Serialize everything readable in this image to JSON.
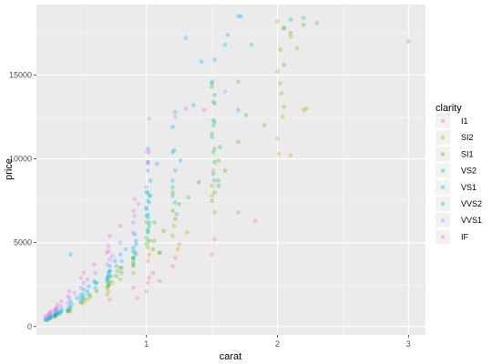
{
  "chart_data": {
    "type": "scatter",
    "title": "",
    "xlabel": "carat",
    "ylabel": "price",
    "xlim": [
      0.16,
      3.13
    ],
    "ylim": [
      -500,
      19200
    ],
    "x_ticks": [
      1,
      2,
      3
    ],
    "y_ticks": [
      0,
      5000,
      10000,
      15000
    ],
    "y_tick_labels": [
      "0",
      "5000",
      "10000",
      "15000"
    ],
    "grid": true,
    "point_alpha": 0.3,
    "legend": {
      "title": "clarity",
      "position": "right",
      "categories": [
        "I1",
        "SI2",
        "SI1",
        "VS2",
        "VS1",
        "VVS2",
        "VVS1",
        "IF"
      ],
      "colors": [
        "#F8766D",
        "#C49A00",
        "#53B400",
        "#00C094",
        "#00B6EB",
        "#06A4FF",
        "#A58AFF",
        "#FB61D7"
      ]
    },
    "series": [
      {
        "name": "I1",
        "points": [
          [
            0.93,
            1700
          ],
          [
            1.0,
            2100
          ],
          [
            1.01,
            2600
          ],
          [
            1.02,
            2900
          ],
          [
            1.05,
            3200
          ],
          [
            1.2,
            3600
          ],
          [
            1.5,
            4300
          ],
          [
            1.52,
            5200
          ],
          [
            1.83,
            6300
          ],
          [
            1.01,
            3900
          ],
          [
            0.9,
            2300
          ],
          [
            1.22,
            4100
          ],
          [
            0.72,
            1600
          ],
          [
            1.1,
            2700
          ]
        ]
      },
      {
        "name": "SI2",
        "points": [
          [
            3.0,
            17000
          ],
          [
            2.0,
            18200
          ],
          [
            2.05,
            17800
          ],
          [
            2.1,
            17300
          ],
          [
            2.15,
            16600
          ],
          [
            2.0,
            15200
          ],
          [
            2.02,
            14500
          ],
          [
            2.03,
            13900
          ],
          [
            2.05,
            13100
          ],
          [
            2.2,
            12900
          ],
          [
            2.22,
            13000
          ],
          [
            2.0,
            11200
          ],
          [
            2.01,
            10300
          ],
          [
            2.1,
            10200
          ],
          [
            1.5,
            8400
          ],
          [
            1.5,
            7800
          ],
          [
            1.52,
            6800
          ],
          [
            1.7,
            6800
          ],
          [
            1.2,
            5400
          ],
          [
            1.21,
            6000
          ],
          [
            1.25,
            4900
          ],
          [
            1.02,
            4300
          ],
          [
            1.01,
            4700
          ],
          [
            0.9,
            3600
          ],
          [
            0.9,
            3200
          ],
          [
            0.8,
            2800
          ],
          [
            0.71,
            2400
          ],
          [
            0.71,
            2100
          ],
          [
            0.7,
            1900
          ],
          [
            0.55,
            1600
          ],
          [
            0.52,
            1400
          ],
          [
            0.42,
            900
          ],
          [
            0.31,
            700
          ],
          [
            0.3,
            600
          ],
          [
            1.03,
            5100
          ],
          [
            1.1,
            4400
          ],
          [
            1.31,
            5600
          ],
          [
            1.51,
            9300
          ],
          [
            2.04,
            12500
          ],
          [
            1.24,
            4600
          ],
          [
            0.74,
            2600
          ]
        ]
      },
      {
        "name": "SI1",
        "points": [
          [
            2.3,
            18100
          ],
          [
            2.2,
            18000
          ],
          [
            2.1,
            17500
          ],
          [
            2.02,
            16500
          ],
          [
            2.05,
            15600
          ],
          [
            1.7,
            14600
          ],
          [
            1.5,
            14300
          ],
          [
            1.51,
            13400
          ],
          [
            1.52,
            12200
          ],
          [
            1.5,
            11500
          ],
          [
            1.52,
            10600
          ],
          [
            1.55,
            9900
          ],
          [
            1.6,
            9300
          ],
          [
            1.55,
            8700
          ],
          [
            1.52,
            8000
          ],
          [
            1.5,
            7500
          ],
          [
            1.2,
            8000
          ],
          [
            1.25,
            7300
          ],
          [
            1.2,
            6900
          ],
          [
            1.22,
            6400
          ],
          [
            1.02,
            6200
          ],
          [
            1.01,
            5800
          ],
          [
            1.0,
            5300
          ],
          [
            1.0,
            4900
          ],
          [
            1.05,
            4600
          ],
          [
            1.1,
            4400
          ],
          [
            0.91,
            4400
          ],
          [
            0.9,
            4100
          ],
          [
            0.9,
            3800
          ],
          [
            0.81,
            3500
          ],
          [
            0.81,
            3200
          ],
          [
            0.73,
            3000
          ],
          [
            0.72,
            2700
          ],
          [
            0.71,
            2500
          ],
          [
            0.7,
            2300
          ],
          [
            0.62,
            2100
          ],
          [
            0.57,
            1800
          ],
          [
            0.52,
            1600
          ],
          [
            0.5,
            1400
          ],
          [
            0.41,
            1000
          ],
          [
            0.4,
            900
          ],
          [
            0.34,
            800
          ],
          [
            0.31,
            700
          ],
          [
            0.3,
            600
          ],
          [
            0.27,
            500
          ],
          [
            0.25,
            400
          ],
          [
            1.32,
            7700
          ],
          [
            1.4,
            8600
          ],
          [
            1.7,
            11000
          ],
          [
            1.76,
            12600
          ],
          [
            1.9,
            12000
          ],
          [
            1.06,
            5100
          ],
          [
            1.13,
            5700
          ],
          [
            0.78,
            3300
          ]
        ]
      },
      {
        "name": "VS2",
        "points": [
          [
            2.2,
            18400
          ],
          [
            2.1,
            18300
          ],
          [
            2.05,
            17800
          ],
          [
            1.8,
            16800
          ],
          [
            1.5,
            14500
          ],
          [
            1.52,
            13800
          ],
          [
            1.51,
            12300
          ],
          [
            1.5,
            11300
          ],
          [
            1.51,
            10400
          ],
          [
            1.52,
            9800
          ],
          [
            1.51,
            9100
          ],
          [
            1.52,
            8700
          ],
          [
            1.55,
            8400
          ],
          [
            1.21,
            10500
          ],
          [
            1.2,
            8300
          ],
          [
            1.2,
            7800
          ],
          [
            1.22,
            7400
          ],
          [
            1.01,
            8000
          ],
          [
            1.01,
            7500
          ],
          [
            1.0,
            7000
          ],
          [
            1.0,
            6600
          ],
          [
            1.02,
            6000
          ],
          [
            1.01,
            5600
          ],
          [
            1.01,
            5100
          ],
          [
            0.92,
            4300
          ],
          [
            0.9,
            4000
          ],
          [
            0.9,
            3700
          ],
          [
            0.8,
            3500
          ],
          [
            0.72,
            3300
          ],
          [
            0.71,
            3000
          ],
          [
            0.7,
            2700
          ],
          [
            0.71,
            2500
          ],
          [
            0.61,
            2300
          ],
          [
            0.56,
            1900
          ],
          [
            0.52,
            1700
          ],
          [
            0.5,
            1500
          ],
          [
            0.42,
            1100
          ],
          [
            0.4,
            900
          ],
          [
            0.34,
            800
          ],
          [
            0.32,
            700
          ],
          [
            0.3,
            600
          ],
          [
            0.26,
            500
          ],
          [
            0.24,
            400
          ],
          [
            1.7,
            12900
          ],
          [
            1.06,
            6200
          ],
          [
            1.23,
            6700
          ],
          [
            1.56,
            10700
          ],
          [
            0.77,
            3000
          ]
        ]
      },
      {
        "name": "VS1",
        "points": [
          [
            1.7,
            18500
          ],
          [
            1.6,
            16800
          ],
          [
            1.5,
            14600
          ],
          [
            1.52,
            13300
          ],
          [
            1.51,
            12000
          ],
          [
            1.2,
            10400
          ],
          [
            1.22,
            9300
          ],
          [
            1.2,
            8700
          ],
          [
            1.01,
            9300
          ],
          [
            1.0,
            8000
          ],
          [
            1.02,
            7400
          ],
          [
            1.01,
            6700
          ],
          [
            1.0,
            6200
          ],
          [
            1.01,
            5700
          ],
          [
            0.92,
            4900
          ],
          [
            0.9,
            4500
          ],
          [
            0.9,
            4100
          ],
          [
            0.81,
            3900
          ],
          [
            0.77,
            3600
          ],
          [
            0.72,
            3300
          ],
          [
            0.71,
            3000
          ],
          [
            0.7,
            2800
          ],
          [
            0.61,
            2600
          ],
          [
            0.55,
            2100
          ],
          [
            0.52,
            1900
          ],
          [
            0.5,
            1700
          ],
          [
            0.43,
            1300
          ],
          [
            0.4,
            1000
          ],
          [
            0.35,
            900
          ],
          [
            0.32,
            800
          ],
          [
            0.3,
            700
          ],
          [
            0.27,
            600
          ],
          [
            0.25,
            500
          ],
          [
            0.23,
            400
          ],
          [
            1.03,
            7800
          ],
          [
            1.26,
            9900
          ],
          [
            0.84,
            4600
          ]
        ]
      },
      {
        "name": "VVS2",
        "points": [
          [
            1.72,
            18500
          ],
          [
            1.62,
            17400
          ],
          [
            1.3,
            17200
          ],
          [
            1.52,
            15900
          ],
          [
            1.36,
            13200
          ],
          [
            1.22,
            12800
          ],
          [
            1.2,
            11900
          ],
          [
            1.01,
            10600
          ],
          [
            1.01,
            9800
          ],
          [
            1.03,
            8700
          ],
          [
            1.02,
            7800
          ],
          [
            1.0,
            7100
          ],
          [
            1.01,
            6500
          ],
          [
            0.91,
            5500
          ],
          [
            0.92,
            5100
          ],
          [
            0.9,
            4700
          ],
          [
            0.8,
            4300
          ],
          [
            0.76,
            3900
          ],
          [
            0.72,
            3600
          ],
          [
            0.71,
            3200
          ],
          [
            0.7,
            2900
          ],
          [
            0.6,
            2700
          ],
          [
            0.56,
            2400
          ],
          [
            0.52,
            2200
          ],
          [
            0.5,
            1900
          ],
          [
            0.47,
            1700
          ],
          [
            0.42,
            1500
          ],
          [
            0.41,
            1200
          ],
          [
            0.35,
            1000
          ],
          [
            0.32,
            900
          ],
          [
            0.31,
            800
          ],
          [
            0.3,
            700
          ],
          [
            0.27,
            600
          ],
          [
            0.26,
            500
          ],
          [
            0.23,
            400
          ],
          [
            0.42,
            4300
          ],
          [
            1.42,
            15800
          ],
          [
            1.08,
            9700
          ],
          [
            0.62,
            2600
          ]
        ]
      },
      {
        "name": "VVS1",
        "points": [
          [
            1.6,
            14000
          ],
          [
            1.3,
            13000
          ],
          [
            1.02,
            12400
          ],
          [
            1.0,
            10400
          ],
          [
            1.01,
            9700
          ],
          [
            1.0,
            8300
          ],
          [
            0.91,
            6600
          ],
          [
            0.9,
            6200
          ],
          [
            0.9,
            5600
          ],
          [
            0.8,
            5000
          ],
          [
            0.71,
            4500
          ],
          [
            0.72,
            4000
          ],
          [
            0.7,
            3700
          ],
          [
            0.61,
            3200
          ],
          [
            0.55,
            2800
          ],
          [
            0.52,
            2600
          ],
          [
            0.5,
            2300
          ],
          [
            0.45,
            2000
          ],
          [
            0.41,
            1700
          ],
          [
            0.4,
            1400
          ],
          [
            0.35,
            1200
          ],
          [
            0.32,
            1100
          ],
          [
            0.31,
            1000
          ],
          [
            0.3,
            900
          ],
          [
            0.27,
            800
          ],
          [
            0.26,
            700
          ],
          [
            0.25,
            600
          ],
          [
            0.23,
            500
          ],
          [
            0.94,
            7300
          ],
          [
            0.74,
            4200
          ]
        ]
      },
      {
        "name": "IF",
        "points": [
          [
            1.44,
            12900
          ],
          [
            1.22,
            12500
          ],
          [
            1.02,
            10400
          ],
          [
            1.01,
            9800
          ],
          [
            0.91,
            7600
          ],
          [
            0.9,
            6900
          ],
          [
            0.8,
            6000
          ],
          [
            0.72,
            5400
          ],
          [
            0.71,
            4800
          ],
          [
            0.7,
            4400
          ],
          [
            0.6,
            3700
          ],
          [
            0.52,
            3200
          ],
          [
            0.5,
            2900
          ],
          [
            0.41,
            2100
          ],
          [
            0.4,
            1800
          ],
          [
            0.35,
            1500
          ],
          [
            0.32,
            1300
          ],
          [
            0.31,
            1100
          ],
          [
            0.3,
            1000
          ],
          [
            0.27,
            900
          ],
          [
            0.26,
            800
          ],
          [
            0.25,
            700
          ],
          [
            0.23,
            600
          ]
        ]
      }
    ]
  }
}
